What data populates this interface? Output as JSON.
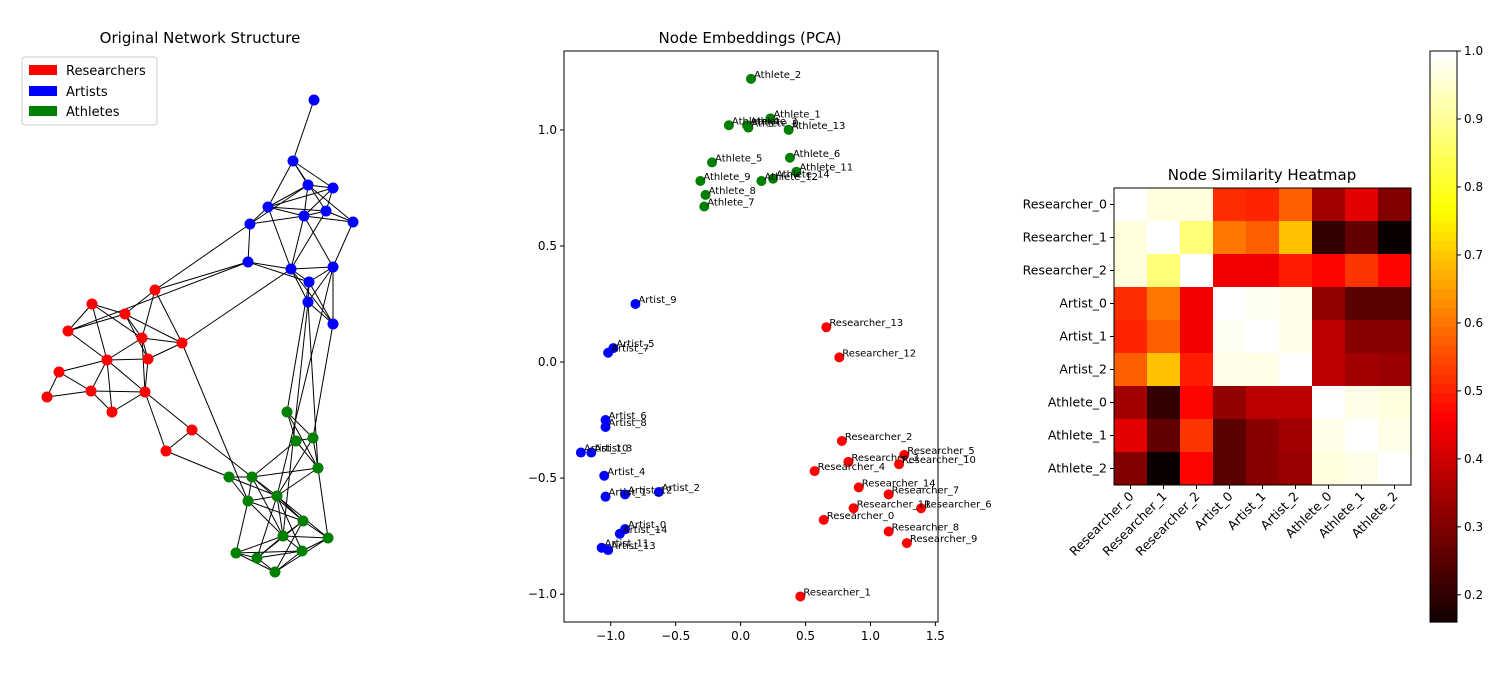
{
  "chart_data": [
    {
      "type": "network",
      "title": "Original Network Structure",
      "legend": {
        "placement": "upper-left",
        "entries": [
          {
            "label": "Researchers",
            "color": "#ff0000"
          },
          {
            "label": "Artists",
            "color": "#0000ff"
          },
          {
            "label": "Athletes",
            "color": "#008000"
          }
        ]
      }
    },
    {
      "type": "scatter",
      "title": "Node Embeddings (PCA)",
      "xlabel": "",
      "ylabel": "",
      "xlim": [
        -1.36,
        1.52
      ],
      "ylim": [
        -1.12,
        1.34
      ],
      "xticks": [
        "−1.0",
        "−0.5",
        "0.0",
        "0.5",
        "1.0",
        "1.5"
      ],
      "yticks": [
        "−1.0",
        "−0.5",
        "0.0",
        "0.5",
        "1.0"
      ],
      "series": [
        {
          "name": "Researchers",
          "color": "#ff0000",
          "points": [
            {
              "label": "Researcher_13",
              "x": 0.66,
              "y": 0.15
            },
            {
              "label": "Researcher_12",
              "x": 0.76,
              "y": 0.02
            },
            {
              "label": "Researcher_2",
              "x": 0.78,
              "y": -0.34
            },
            {
              "label": "Researcher_5",
              "x": 1.26,
              "y": -0.4
            },
            {
              "label": "Researcher_3",
              "x": 0.83,
              "y": -0.43
            },
            {
              "label": "Researcher_10",
              "x": 1.22,
              "y": -0.44
            },
            {
              "label": "Researcher_4",
              "x": 0.57,
              "y": -0.47
            },
            {
              "label": "Researcher_14",
              "x": 0.91,
              "y": -0.54
            },
            {
              "label": "Researcher_7",
              "x": 1.14,
              "y": -0.57
            },
            {
              "label": "Researcher_6",
              "x": 1.39,
              "y": -0.63
            },
            {
              "label": "Researcher_11",
              "x": 0.87,
              "y": -0.63
            },
            {
              "label": "Researcher_0",
              "x": 0.64,
              "y": -0.68
            },
            {
              "label": "Researcher_8",
              "x": 1.14,
              "y": -0.73
            },
            {
              "label": "Researcher_9",
              "x": 1.28,
              "y": -0.78
            },
            {
              "label": "Researcher_1",
              "x": 0.46,
              "y": -1.01
            }
          ]
        },
        {
          "name": "Artists",
          "color": "#0000ff",
          "points": [
            {
              "label": "Artist_9",
              "x": -0.81,
              "y": 0.25
            },
            {
              "label": "Artist_5",
              "x": -0.98,
              "y": 0.06
            },
            {
              "label": "Artist_7",
              "x": -1.02,
              "y": 0.04
            },
            {
              "label": "Artist_6",
              "x": -1.04,
              "y": -0.25
            },
            {
              "label": "Artist_8",
              "x": -1.04,
              "y": -0.28
            },
            {
              "label": "Artist_3",
              "x": -1.15,
              "y": -0.39
            },
            {
              "label": "Artist_10",
              "x": -1.23,
              "y": -0.39
            },
            {
              "label": "Artist_4",
              "x": -1.05,
              "y": -0.49
            },
            {
              "label": "Artist_2",
              "x": -0.63,
              "y": -0.56
            },
            {
              "label": "Artist_12",
              "x": -0.89,
              "y": -0.57
            },
            {
              "label": "Artist_1",
              "x": -1.04,
              "y": -0.58
            },
            {
              "label": "Artist_0",
              "x": -0.89,
              "y": -0.72
            },
            {
              "label": "Artist_14",
              "x": -0.93,
              "y": -0.74
            },
            {
              "label": "Artist_11",
              "x": -1.07,
              "y": -0.8
            },
            {
              "label": "Artist_13",
              "x": -1.02,
              "y": -0.81
            }
          ]
        },
        {
          "name": "Athletes",
          "color": "#008000",
          "points": [
            {
              "label": "Athlete_2",
              "x": 0.08,
              "y": 1.22
            },
            {
              "label": "Athlete_1",
              "x": 0.23,
              "y": 1.05
            },
            {
              "label": "Athlete_3",
              "x": 0.05,
              "y": 1.02
            },
            {
              "label": "Athlete_0",
              "x": 0.06,
              "y": 1.01
            },
            {
              "label": "Athlete_4",
              "x": -0.09,
              "y": 1.02
            },
            {
              "label": "Athlete_13",
              "x": 0.37,
              "y": 1.0
            },
            {
              "label": "Athlete_6",
              "x": 0.38,
              "y": 0.88
            },
            {
              "label": "Athlete_5",
              "x": -0.22,
              "y": 0.86
            },
            {
              "label": "Athlete_11",
              "x": 0.43,
              "y": 0.82
            },
            {
              "label": "Athlete_9",
              "x": -0.31,
              "y": 0.78
            },
            {
              "label": "Athlete_14",
              "x": 0.25,
              "y": 0.79
            },
            {
              "label": "Athlete_12",
              "x": 0.16,
              "y": 0.78
            },
            {
              "label": "Athlete_8",
              "x": -0.27,
              "y": 0.72
            },
            {
              "label": "Athlete_7",
              "x": -0.28,
              "y": 0.67
            }
          ]
        }
      ]
    },
    {
      "type": "heatmap",
      "title": "Node Similarity Heatmap",
      "colormap": "hot",
      "labels": [
        "Researcher_0",
        "Researcher_1",
        "Researcher_2",
        "Artist_0",
        "Artist_1",
        "Artist_2",
        "Athlete_0",
        "Athlete_1",
        "Athlete_2"
      ],
      "values": [
        [
          1.0,
          0.97,
          0.97,
          0.52,
          0.51,
          0.58,
          0.35,
          0.43,
          0.31
        ],
        [
          0.97,
          1.0,
          0.88,
          0.61,
          0.58,
          0.7,
          0.21,
          0.27,
          0.16
        ],
        [
          0.97,
          0.88,
          1.0,
          0.45,
          0.45,
          0.5,
          0.47,
          0.53,
          0.47
        ],
        [
          0.52,
          0.61,
          0.45,
          1.0,
          0.99,
          0.98,
          0.33,
          0.26,
          0.26
        ],
        [
          0.51,
          0.58,
          0.45,
          0.99,
          1.0,
          0.98,
          0.38,
          0.32,
          0.32
        ],
        [
          0.58,
          0.7,
          0.5,
          0.98,
          0.98,
          1.0,
          0.38,
          0.35,
          0.34
        ],
        [
          0.35,
          0.21,
          0.47,
          0.33,
          0.38,
          0.38,
          1.0,
          0.98,
          0.97
        ],
        [
          0.43,
          0.27,
          0.53,
          0.26,
          0.32,
          0.35,
          0.98,
          1.0,
          0.98
        ],
        [
          0.31,
          0.16,
          0.47,
          0.26,
          0.32,
          0.34,
          0.97,
          0.98,
          1.0
        ]
      ],
      "colorbar": {
        "min": 0.16,
        "max": 1.0,
        "ticks": [
          0.2,
          0.3,
          0.4,
          0.5,
          0.6,
          0.7,
          0.8,
          0.9,
          1.0
        ],
        "tick_labels": [
          "0.2",
          "0.3",
          "0.4",
          "0.5",
          "0.6",
          "0.7",
          "0.8",
          "0.9",
          "1.0"
        ]
      }
    }
  ]
}
